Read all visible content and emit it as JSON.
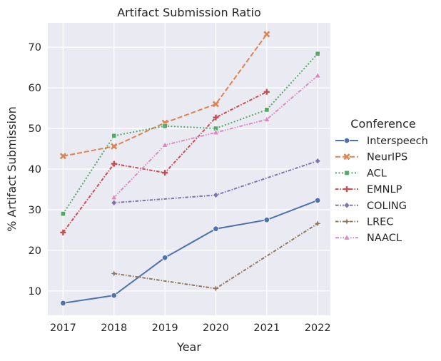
{
  "chart_data": {
    "type": "line",
    "title": "Artifact Submission Ratio",
    "xlabel": "Year",
    "ylabel": "% Artifact Submission",
    "x": [
      2017,
      2018,
      2019,
      2020,
      2021,
      2022
    ],
    "xlim": [
      2016.7,
      2022.25
    ],
    "ylim": [
      4,
      76
    ],
    "y_ticks": [
      10,
      20,
      30,
      40,
      50,
      60,
      70
    ],
    "grid": true,
    "legend": {
      "title": "Conference",
      "placement": "right"
    },
    "series": [
      {
        "name": "Interspeech",
        "color": "#4c72b0",
        "marker": "circle",
        "dash": "solid",
        "values": [
          7,
          8.9,
          18.2,
          25.3,
          27.5,
          32.3
        ]
      },
      {
        "name": "NeurIPS",
        "color": "#dd8452",
        "marker": "x",
        "dash": "dashed",
        "values": [
          43.2,
          45.6,
          51.4,
          56,
          73.2,
          null
        ]
      },
      {
        "name": "ACL",
        "color": "#55a868",
        "marker": "square",
        "dash": "dotted",
        "values": [
          29,
          48.2,
          50.6,
          50,
          54.6,
          68.4
        ]
      },
      {
        "name": "EMNLP",
        "color": "#c44e52",
        "marker": "plus",
        "dash": "dashdot",
        "values": [
          24.4,
          41.3,
          39.1,
          52.7,
          59,
          null
        ]
      },
      {
        "name": "COLING",
        "color": "#8172b3",
        "marker": "diamond",
        "dash": "dashdot",
        "values": [
          null,
          31.7,
          null,
          33.6,
          null,
          42
        ]
      },
      {
        "name": "LREC",
        "color": "#937860",
        "marker": "star",
        "dash": "dashdot",
        "values": [
          null,
          14.3,
          null,
          10.6,
          null,
          26.6
        ]
      },
      {
        "name": "NAACL",
        "color": "#da8bc3",
        "marker": "triangle",
        "dash": "dashdotdot",
        "values": [
          null,
          33,
          45.9,
          49,
          52.2,
          63
        ]
      }
    ]
  }
}
